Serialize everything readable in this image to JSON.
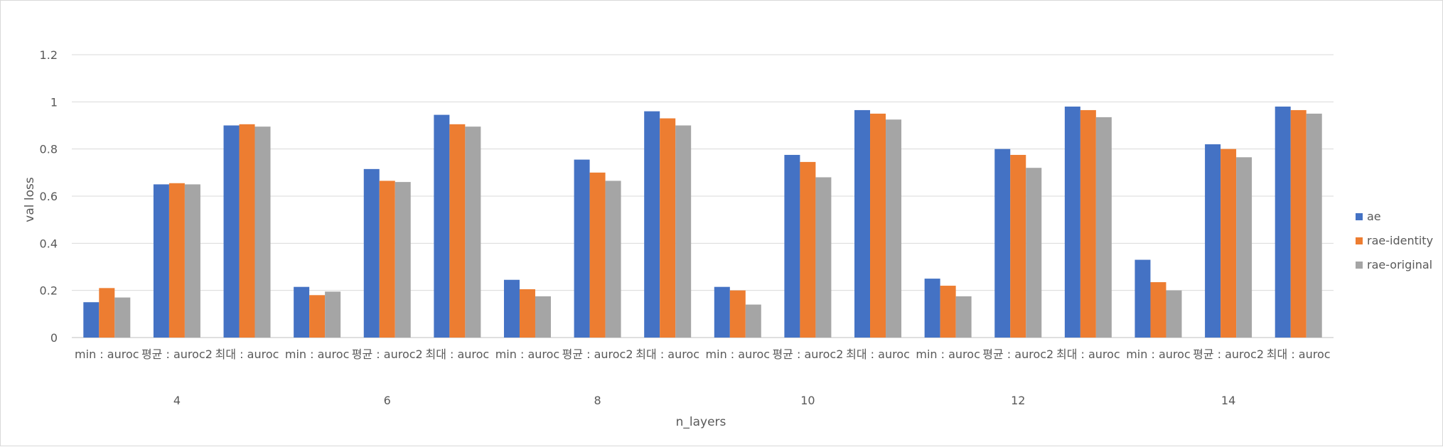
{
  "chart_data": {
    "type": "bar",
    "title": "",
    "xlabel": "n_layers",
    "ylabel": "val loss",
    "ylim": [
      0,
      1.2
    ],
    "yticks": [
      "0",
      "0.2",
      "0.4",
      "0.6",
      "0.8",
      "1",
      "1.2"
    ],
    "grid": true,
    "legend_position": "right",
    "groups": [
      {
        "label": "4",
        "categories": [
          "min : auroc",
          "평균 : auroc2",
          "최대 : auroc"
        ]
      },
      {
        "label": "6",
        "categories": [
          "min : auroc",
          "평균 : auroc2",
          "최대 : auroc"
        ]
      },
      {
        "label": "8",
        "categories": [
          "min : auroc",
          "평균 : auroc2",
          "최대 : auroc"
        ]
      },
      {
        "label": "10",
        "categories": [
          "min : auroc",
          "평균 : auroc2",
          "최대 : auroc"
        ]
      },
      {
        "label": "12",
        "categories": [
          "min : auroc",
          "평균 : auroc2",
          "최대 : auroc"
        ]
      },
      {
        "label": "14",
        "categories": [
          "min : auroc",
          "평균 : auroc2",
          "최대 : auroc"
        ]
      }
    ],
    "series": [
      {
        "name": "ae",
        "color": "#4472c4",
        "values": [
          0.15,
          0.65,
          0.9,
          0.215,
          0.715,
          0.945,
          0.245,
          0.755,
          0.96,
          0.215,
          0.775,
          0.965,
          0.25,
          0.8,
          0.98,
          0.33,
          0.82,
          0.98
        ]
      },
      {
        "name": "rae-identity",
        "color": "#ed7d31",
        "values": [
          0.21,
          0.655,
          0.905,
          0.18,
          0.665,
          0.905,
          0.205,
          0.7,
          0.93,
          0.2,
          0.745,
          0.95,
          0.22,
          0.775,
          0.965,
          0.235,
          0.8,
          0.965
        ]
      },
      {
        "name": "rae-original",
        "color": "#a5a5a5",
        "values": [
          0.17,
          0.65,
          0.895,
          0.195,
          0.66,
          0.895,
          0.175,
          0.665,
          0.9,
          0.14,
          0.68,
          0.925,
          0.175,
          0.72,
          0.935,
          0.2,
          0.765,
          0.95
        ]
      }
    ]
  }
}
